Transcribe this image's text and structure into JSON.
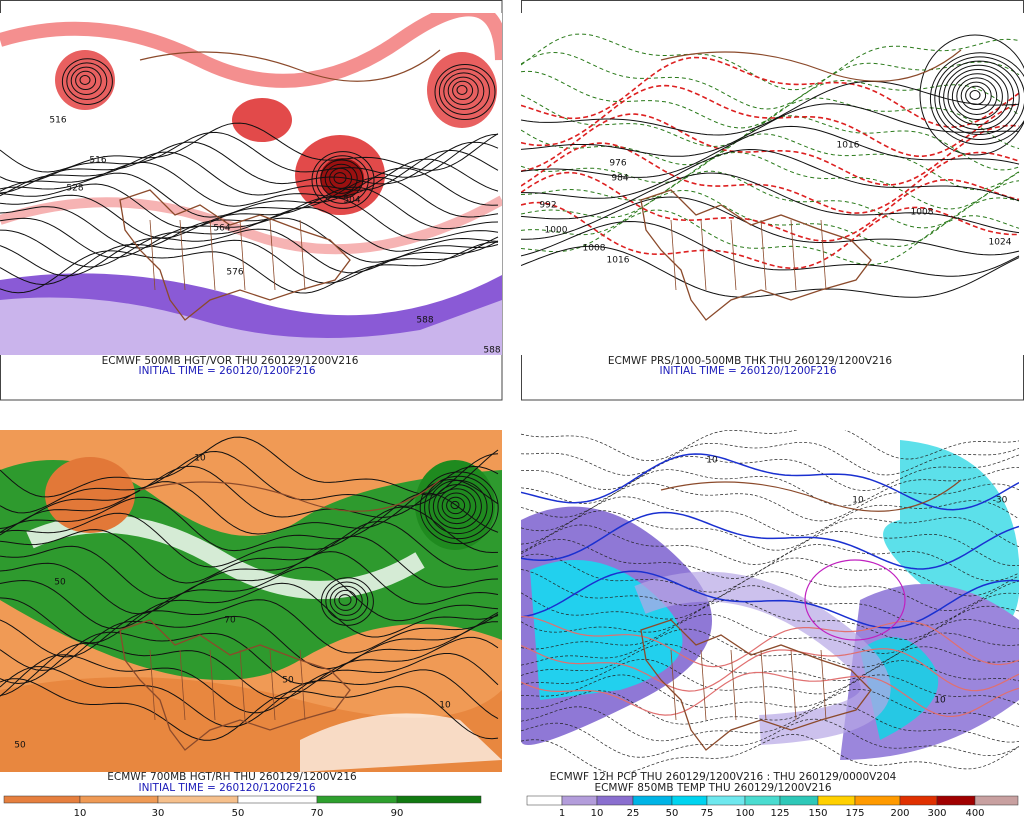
{
  "panels": [
    {
      "caption": "ECMWF 500MB HGT/VOR THU 260129/1200V216",
      "subcaption": "INITIAL TIME = 260120/1200F216",
      "contour_labels": [
        "516",
        "516",
        "528",
        "564",
        "576",
        "504",
        "588",
        "588"
      ]
    },
    {
      "caption": "ECMWF PRS/1000-500MB THK THU 260129/1200V216",
      "subcaption": "INITIAL TIME = 260120/1200F216",
      "contour_labels": [
        "992",
        "1000",
        "1008",
        "1016",
        "984",
        "976",
        "1024",
        "1016",
        "1008"
      ]
    },
    {
      "caption": "ECMWF 700MB HGT/RH THU 260129/1200V216",
      "subcaption": "INITIAL TIME = 260120/1200F216",
      "contour_labels": [
        "10",
        "50",
        "50",
        "10",
        "70",
        "50"
      ]
    },
    {
      "caption": "ECMWF 12H PCP THU 260129/1200V216 : THU 260129/0000V204",
      "subcaption": "ECMWF 850MB TEMP THU 260129/1200V216",
      "contour_labels": [
        "10",
        "10",
        "-30",
        "10"
      ]
    }
  ],
  "rh_colorbar": {
    "labels": [
      "10",
      "30",
      "50",
      "70",
      "90"
    ]
  },
  "pcp_colorbar": {
    "labels": [
      "1",
      "10",
      "25",
      "50",
      "75",
      "100",
      "125",
      "150",
      "175",
      "200",
      "300",
      "400"
    ]
  }
}
